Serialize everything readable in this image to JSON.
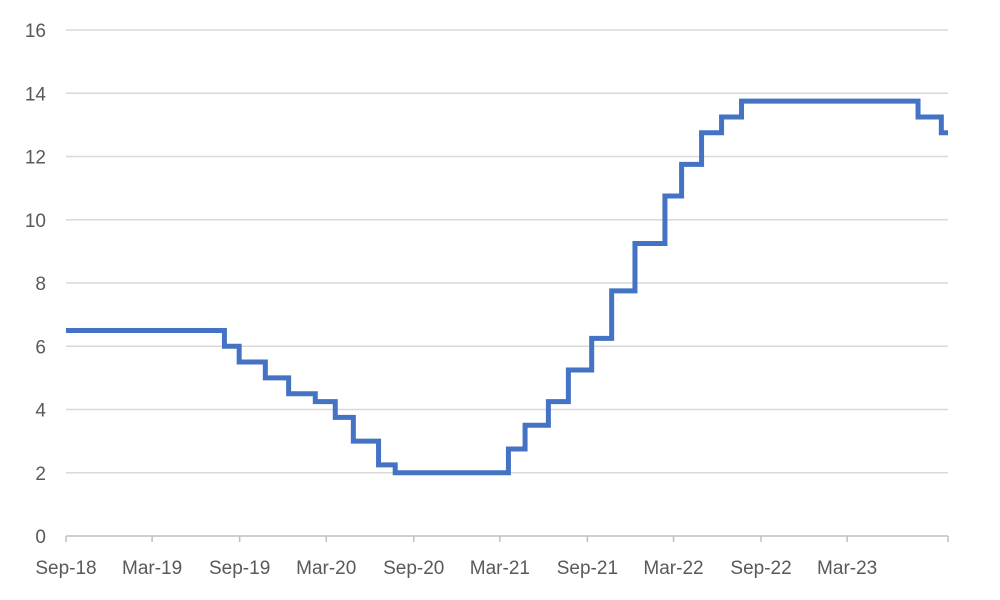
{
  "chart_data": {
    "type": "line",
    "title": "",
    "xlabel": "",
    "ylabel": "",
    "grid": true,
    "legend": "none",
    "ylim": [
      0,
      16
    ],
    "yticks": [
      0,
      2,
      4,
      6,
      8,
      10,
      12,
      14,
      16
    ],
    "xlim": [
      "2018-09-01",
      "2023-09-29"
    ],
    "xticks": [
      {
        "date": "2018-09-01",
        "label": "Sep-18"
      },
      {
        "date": "2019-03-01",
        "label": "Mar-19"
      },
      {
        "date": "2019-09-01",
        "label": "Sep-19"
      },
      {
        "date": "2020-03-01",
        "label": "Mar-20"
      },
      {
        "date": "2020-09-01",
        "label": "Sep-20"
      },
      {
        "date": "2021-03-01",
        "label": "Mar-21"
      },
      {
        "date": "2021-09-01",
        "label": "Sep-21"
      },
      {
        "date": "2022-03-01",
        "label": "Mar-22"
      },
      {
        "date": "2022-09-01",
        "label": "Sep-22"
      },
      {
        "date": "2023-03-01",
        "label": "Mar-23"
      }
    ],
    "series": [
      {
        "step": true,
        "color": "#4472c4",
        "points": [
          {
            "x": "2018-09-01",
            "y": 6.5
          },
          {
            "x": "2019-07-31",
            "y": 6.0
          },
          {
            "x": "2019-08-31",
            "y": 5.5
          },
          {
            "x": "2019-10-25",
            "y": 5.0
          },
          {
            "x": "2019-12-13",
            "y": 4.5
          },
          {
            "x": "2020-02-07",
            "y": 4.25
          },
          {
            "x": "2020-03-20",
            "y": 3.75
          },
          {
            "x": "2020-04-27",
            "y": 3.0
          },
          {
            "x": "2020-06-19",
            "y": 2.25
          },
          {
            "x": "2020-07-24",
            "y": 2.0
          },
          {
            "x": "2021-03-19",
            "y": 2.75
          },
          {
            "x": "2021-04-23",
            "y": 3.5
          },
          {
            "x": "2021-06-11",
            "y": 4.25
          },
          {
            "x": "2021-07-23",
            "y": 5.25
          },
          {
            "x": "2021-09-10",
            "y": 6.25
          },
          {
            "x": "2021-10-22",
            "y": 7.75
          },
          {
            "x": "2021-12-10",
            "y": 9.25
          },
          {
            "x": "2022-02-11",
            "y": 10.75
          },
          {
            "x": "2022-03-18",
            "y": 11.75
          },
          {
            "x": "2022-04-29",
            "y": 12.75
          },
          {
            "x": "2022-06-10",
            "y": 13.25
          },
          {
            "x": "2022-07-22",
            "y": 13.75
          },
          {
            "x": "2023-07-28",
            "y": 13.25
          },
          {
            "x": "2023-09-15",
            "y": 12.75
          },
          {
            "x": "2023-09-29",
            "y": 12.75
          }
        ]
      }
    ]
  }
}
